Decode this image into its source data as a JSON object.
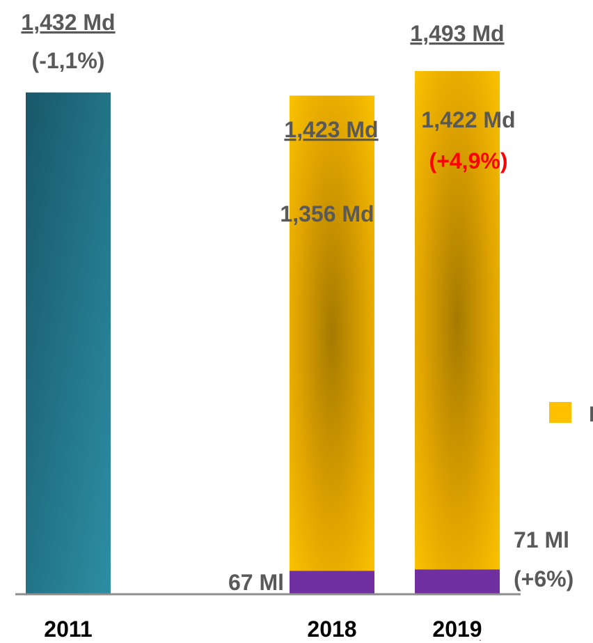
{
  "chart_data": {
    "type": "bar",
    "categories": [
      "2011",
      "2018",
      "2019"
    ],
    "series": [
      {
        "values": [
          1.432,
          null,
          null
        ],
        "color": "#1e6f82"
      },
      {
        "values": [
          null,
          0.067,
          0.071
        ],
        "color": "#7030a0"
      },
      {
        "values": [
          null,
          1.356,
          1.422
        ],
        "color": "#f5b800"
      }
    ],
    "ylim": [
      0,
      1.6
    ],
    "grid": false,
    "legend": {
      "position": "right",
      "color": "#f5b800",
      "label": "l"
    },
    "totals": [
      "1,432 Md",
      "1,423 Md",
      "1,493 Md"
    ],
    "total_changes": [
      "(-1,1%)",
      "",
      ""
    ],
    "segment_labels": {
      "purple": [
        "",
        "67 Ml",
        "71 Ml"
      ],
      "purple_changes": [
        "",
        "",
        "(+6%)"
      ],
      "yellow": [
        "",
        "1,356 Md",
        "1,422 Md"
      ],
      "yellow_changes": [
        "",
        "",
        "(+4,9%)"
      ]
    },
    "label_colors": {
      "text": "#595959",
      "highlight": "#ff0000"
    }
  }
}
